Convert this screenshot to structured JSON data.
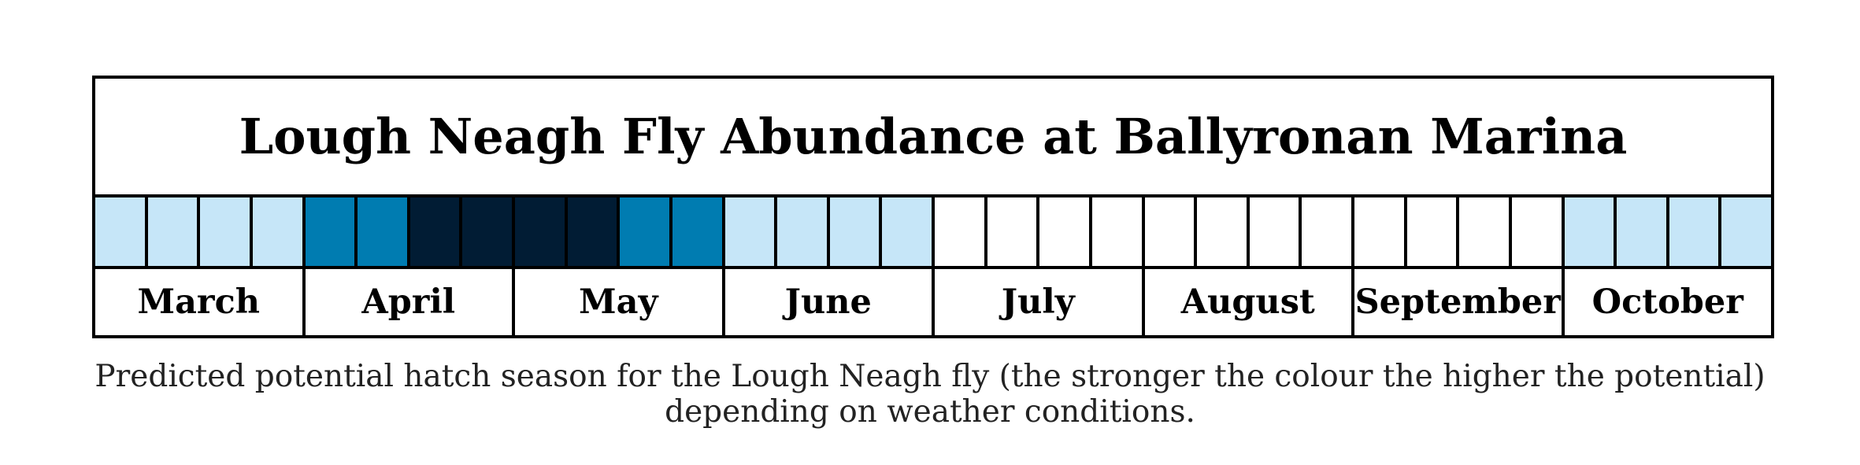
{
  "chart_data": {
    "type": "heatmap",
    "title": "Lough Neagh Fly Abundance at Ballyronan Marina",
    "months": [
      "March",
      "April",
      "May",
      "June",
      "July",
      "August",
      "September",
      "October"
    ],
    "weeks_per_month": 4,
    "levels": [
      1,
      1,
      1,
      1,
      2,
      2,
      3,
      3,
      3,
      3,
      2,
      2,
      1,
      1,
      1,
      1,
      0,
      0,
      0,
      0,
      0,
      0,
      0,
      0,
      0,
      0,
      0,
      0,
      1,
      1,
      1,
      1
    ],
    "level_colors": {
      "0": "#ffffff",
      "1": "#c6e6f8",
      "2": "#007cb1",
      "3": "#011c34"
    }
  },
  "caption": {
    "line1": "Predicted potential hatch season for the Lough Neagh fly (the stronger the colour the higher the potential)",
    "line2": "depending on weather conditions."
  }
}
